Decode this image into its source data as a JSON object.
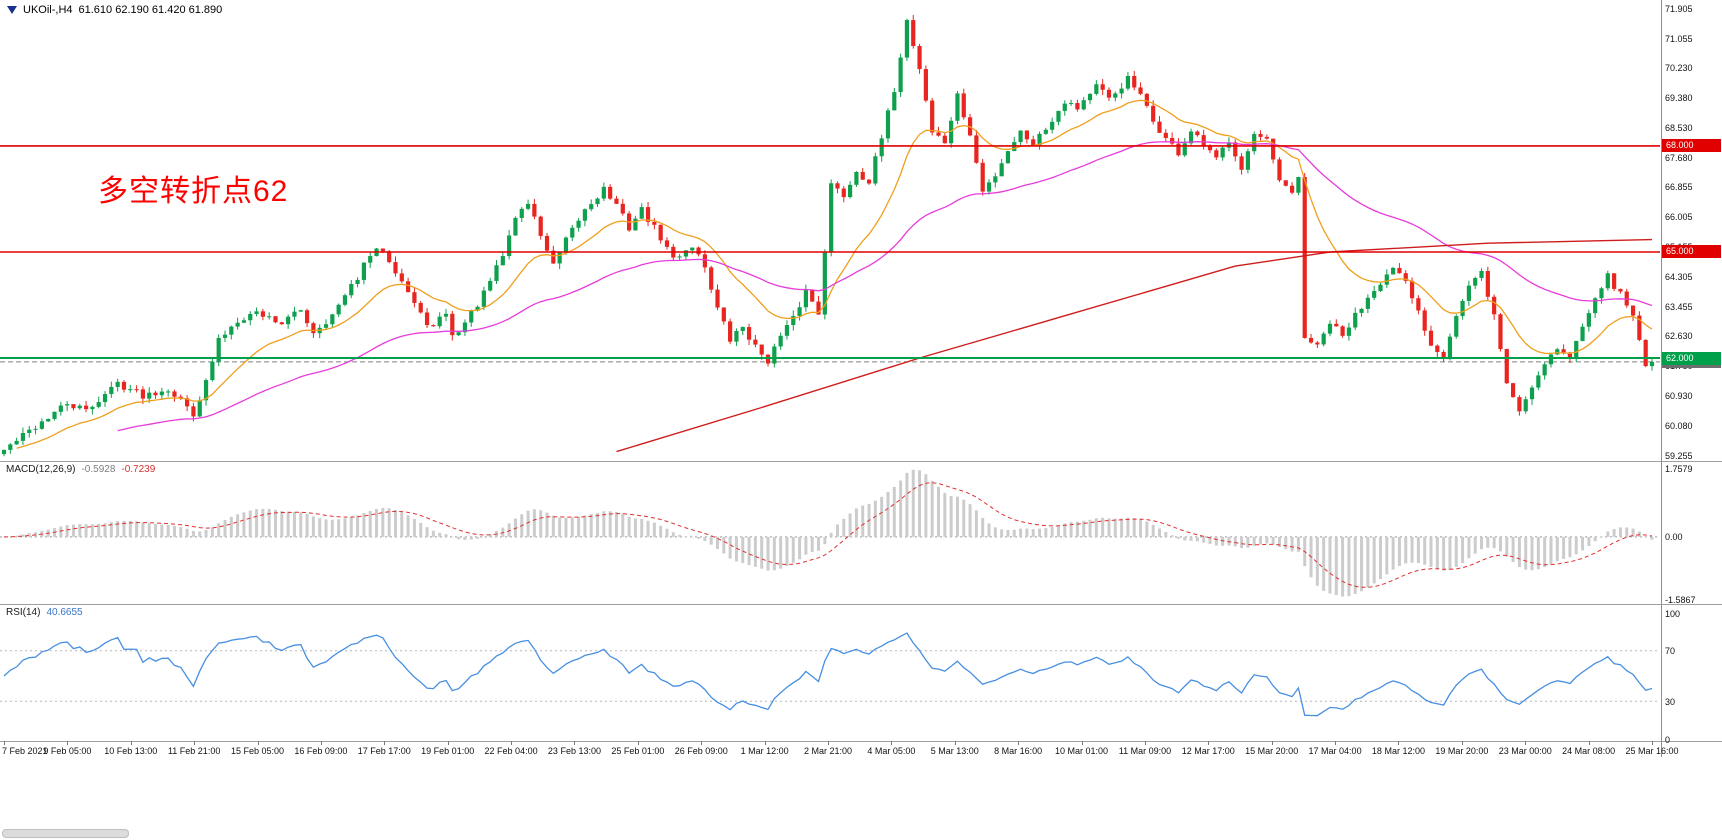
{
  "window": {
    "symbol_title": "UKOil-,H4",
    "ohlc": "61.610 62.190 61.420 61.890",
    "annotation": "多空转折点62"
  },
  "colors": {
    "candle_up": "#0fa04e",
    "candle_down": "#e8251f",
    "current_line": "#808080",
    "current_tag": "#6e6e6e",
    "macd_hist": "#cccccc",
    "macd_signal": "#e03030",
    "rsi_line": "#478fe1",
    "annotation": "#ff0000"
  },
  "chart_data": {
    "type": "candlestick",
    "symbol": "UKOil-",
    "period": "H4",
    "bar_count": 262,
    "final_close": 61.89,
    "seed": 42,
    "jitter": 0.11,
    "wick": 0.16,
    "current_price": {
      "price": 61.89,
      "label": "61.890"
    },
    "price_axis": {
      "max": 71.905,
      "min": 59.255,
      "labels": [
        "71.905",
        "71.055",
        "70.230",
        "69.380",
        "68.530",
        "67.680",
        "66.855",
        "66.005",
        "65.155",
        "64.305",
        "63.455",
        "62.630",
        "61.780",
        "60.930",
        "60.080",
        "59.255"
      ]
    },
    "hlines": [
      {
        "price": 68.0,
        "label": "68.000",
        "color": "#e00000",
        "width": 1.6
      },
      {
        "price": 65.0,
        "label": "65.000",
        "color": "#e00000",
        "width": 1.6
      },
      {
        "price": 62.0,
        "label": "62.000",
        "color": "#00a04a",
        "width": 2
      }
    ],
    "close_waypoints": [
      [
        0,
        59.4
      ],
      [
        6,
        60.2
      ],
      [
        10,
        60.7
      ],
      [
        13,
        60.5
      ],
      [
        18,
        61.3
      ],
      [
        22,
        60.95
      ],
      [
        26,
        61.15
      ],
      [
        28,
        60.8
      ],
      [
        30,
        60.45
      ],
      [
        32,
        61.3
      ],
      [
        34,
        62.5
      ],
      [
        37,
        63.1
      ],
      [
        40,
        63.3
      ],
      [
        44,
        63.0
      ],
      [
        47,
        63.35
      ],
      [
        49,
        62.75
      ],
      [
        52,
        63.2
      ],
      [
        55,
        64.0
      ],
      [
        58,
        64.9
      ],
      [
        60,
        65.1
      ],
      [
        63,
        64.2
      ],
      [
        66,
        63.2
      ],
      [
        68,
        62.85
      ],
      [
        70,
        63.3
      ],
      [
        71,
        62.6
      ],
      [
        73,
        63.0
      ],
      [
        76,
        63.8
      ],
      [
        79,
        64.9
      ],
      [
        81,
        66.0
      ],
      [
        83,
        66.4
      ],
      [
        85,
        65.5
      ],
      [
        87,
        64.6
      ],
      [
        89,
        65.3
      ],
      [
        92,
        66.2
      ],
      [
        95,
        66.8
      ],
      [
        97,
        66.3
      ],
      [
        99,
        65.7
      ],
      [
        101,
        66.2
      ],
      [
        104,
        65.4
      ],
      [
        106,
        64.8
      ],
      [
        109,
        65.2
      ],
      [
        111,
        64.6
      ],
      [
        113,
        63.4
      ],
      [
        115,
        62.5
      ],
      [
        117,
        62.9
      ],
      [
        119,
        62.3
      ],
      [
        121,
        61.95
      ],
      [
        123,
        62.6
      ],
      [
        125,
        63.1
      ],
      [
        127,
        63.9
      ],
      [
        129,
        63.3
      ],
      [
        131,
        66.9
      ],
      [
        133,
        66.6
      ],
      [
        135,
        67.3
      ],
      [
        137,
        67.0
      ],
      [
        139,
        68.2
      ],
      [
        141,
        69.6
      ],
      [
        143,
        71.55
      ],
      [
        145,
        70.2
      ],
      [
        147,
        68.4
      ],
      [
        149,
        68.1
      ],
      [
        151,
        69.4
      ],
      [
        153,
        68.3
      ],
      [
        155,
        66.7
      ],
      [
        157,
        67.2
      ],
      [
        159,
        67.9
      ],
      [
        161,
        68.4
      ],
      [
        163,
        68.1
      ],
      [
        165,
        68.5
      ],
      [
        168,
        69.3
      ],
      [
        170,
        69.1
      ],
      [
        173,
        69.7
      ],
      [
        175,
        69.3
      ],
      [
        178,
        69.9
      ],
      [
        180,
        69.4
      ],
      [
        182,
        68.7
      ],
      [
        184,
        68.2
      ],
      [
        186,
        67.8
      ],
      [
        188,
        68.4
      ],
      [
        190,
        68.0
      ],
      [
        192,
        67.6
      ],
      [
        194,
        68.2
      ],
      [
        196,
        67.4
      ],
      [
        198,
        68.3
      ],
      [
        200,
        68.1
      ],
      [
        202,
        67.0
      ],
      [
        204,
        66.6
      ],
      [
        205,
        67.1
      ],
      [
        206,
        62.6
      ],
      [
        208,
        62.3
      ],
      [
        210,
        63.0
      ],
      [
        212,
        62.6
      ],
      [
        214,
        63.2
      ],
      [
        217,
        64.0
      ],
      [
        220,
        64.5
      ],
      [
        222,
        64.1
      ],
      [
        224,
        63.3
      ],
      [
        226,
        62.4
      ],
      [
        228,
        62.1
      ],
      [
        230,
        63.2
      ],
      [
        232,
        64.0
      ],
      [
        234,
        64.4
      ],
      [
        236,
        63.2
      ],
      [
        238,
        61.3
      ],
      [
        240,
        60.5
      ],
      [
        242,
        61.2
      ],
      [
        244,
        61.9
      ],
      [
        246,
        62.3
      ],
      [
        248,
        62.0
      ],
      [
        250,
        62.9
      ],
      [
        252,
        63.8
      ],
      [
        254,
        64.3
      ],
      [
        256,
        63.8
      ],
      [
        258,
        63.2
      ],
      [
        259,
        62.6
      ],
      [
        260,
        61.7
      ],
      [
        261,
        61.89
      ]
    ],
    "ma": {
      "fast": {
        "period": 16,
        "color": "#ef9f1c"
      },
      "mid": {
        "period": 55,
        "color": "#e73bdb"
      },
      "slow": {
        "color": "#cf1d1d",
        "waypoints": [
          [
            97,
            59.35
          ],
          [
            120,
            60.6
          ],
          [
            145,
            62.0
          ],
          [
            170,
            63.3
          ],
          [
            195,
            64.6
          ],
          [
            210,
            65.0
          ],
          [
            235,
            65.25
          ],
          [
            261,
            65.35
          ]
        ]
      }
    },
    "macd": {
      "label": "MACD(12,26,9)",
      "value_main": "-0.5928",
      "value_signal": "-0.7239",
      "fast": 12,
      "slow": 26,
      "signal_period": 9,
      "scale_labels": [
        {
          "text": "1.7579",
          "value": 1.7579
        },
        {
          "text": "0.00",
          "value": 0
        },
        {
          "text": "-1.5867",
          "value": -1.5867
        }
      ]
    },
    "rsi": {
      "label": "RSI(14)",
      "value": "40.6655",
      "period": 14,
      "levels": [
        70,
        30
      ],
      "scale_labels": [
        {
          "text": "100",
          "value": 100
        },
        {
          "text": "70",
          "value": 70
        },
        {
          "text": "30",
          "value": 30
        },
        {
          "text": "0",
          "value": 0
        }
      ]
    },
    "time_axis": {
      "labels": [
        "7 Feb 2021",
        "9 Feb 05:00",
        "10 Feb 13:00",
        "11 Feb 21:00",
        "15 Feb 05:00",
        "16 Feb 09:00",
        "17 Feb 17:00",
        "19 Feb 01:00",
        "22 Feb 04:00",
        "23 Feb 13:00",
        "25 Feb 01:00",
        "26 Feb 09:00",
        "1 Mar 12:00",
        "2 Mar 21:00",
        "4 Mar 05:00",
        "5 Mar 13:00",
        "8 Mar 16:00",
        "10 Mar 01:00",
        "11 Mar 09:00",
        "12 Mar 17:00",
        "15 Mar 20:00",
        "17 Mar 04:00",
        "18 Mar 12:00",
        "19 Mar 20:00",
        "23 Mar 00:00",
        "24 Mar 08:00",
        "25 Mar 16:00"
      ]
    }
  }
}
